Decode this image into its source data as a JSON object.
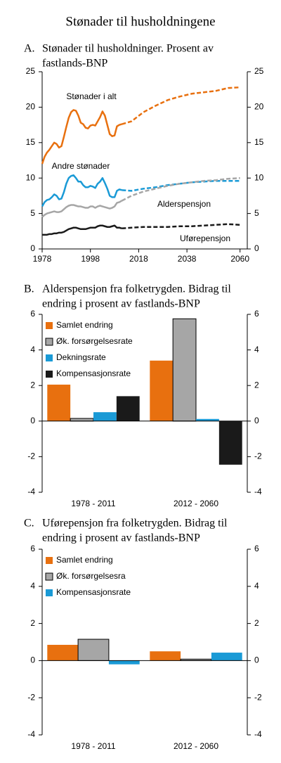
{
  "title": "Stønader til husholdningene",
  "chart_data": [
    {
      "type": "line",
      "label": "A.",
      "title": [
        "Stønader til husholdninger. Prosent av",
        "fastlands-BNP"
      ],
      "x": [
        1978,
        1979,
        1980,
        1981,
        1982,
        1983,
        1984,
        1985,
        1986,
        1987,
        1988,
        1989,
        1990,
        1991,
        1992,
        1993,
        1994,
        1995,
        1996,
        1997,
        1998,
        1999,
        2000,
        2001,
        2002,
        2003,
        2004,
        2005,
        2006,
        2007,
        2008,
        2009,
        2010,
        2011,
        2015,
        2020,
        2025,
        2030,
        2035,
        2040,
        2045,
        2050,
        2055,
        2060
      ],
      "xlim": [
        1978,
        2063
      ],
      "xticks": [
        1978,
        1998,
        2018,
        2038,
        2060
      ],
      "ylim": [
        0,
        25
      ],
      "yticks": [
        0,
        5,
        10,
        15,
        20,
        25
      ],
      "y2lim": [
        0,
        25
      ],
      "y2ticks": [
        0,
        5,
        10,
        15,
        20,
        25
      ],
      "series": [
        {
          "name": "Stønader i alt",
          "color": "#e8700f",
          "values": [
            12.0,
            13.0,
            13.6,
            14.0,
            14.5,
            15.0,
            14.8,
            14.3,
            14.5,
            15.8,
            17.2,
            18.5,
            19.3,
            19.6,
            19.5,
            18.8,
            17.8,
            17.6,
            17.1,
            17.0,
            17.4,
            17.5,
            17.4,
            18.0,
            18.6,
            19.4,
            18.8,
            17.5,
            16.2,
            15.9,
            16.0,
            17.3,
            17.5,
            17.6,
            null,
            null,
            null,
            null,
            null,
            null,
            null,
            null,
            null,
            null
          ]
        },
        {
          "name": "Andre stønader",
          "color": "#1a9ad6",
          "values": [
            6.0,
            6.6,
            6.9,
            7.0,
            7.3,
            7.7,
            7.5,
            7.0,
            7.1,
            8.0,
            9.2,
            10.0,
            10.3,
            10.4,
            10.0,
            9.5,
            9.5,
            9.0,
            8.7,
            8.7,
            8.9,
            8.8,
            8.6,
            9.2,
            9.5,
            10.0,
            9.3,
            8.5,
            7.5,
            7.3,
            7.3,
            8.2,
            8.4,
            8.3,
            null,
            null,
            null,
            null,
            null,
            null,
            null,
            null,
            null,
            null
          ]
        },
        {
          "name": "Alderspensjon",
          "color": "#a6a6a6",
          "values": [
            4.5,
            4.8,
            5.0,
            5.1,
            5.2,
            5.3,
            5.2,
            5.2,
            5.3,
            5.6,
            5.9,
            6.1,
            6.2,
            6.2,
            6.1,
            6.0,
            6.0,
            5.9,
            5.8,
            5.8,
            6.0,
            6.0,
            5.8,
            6.0,
            6.1,
            6.0,
            5.9,
            5.8,
            5.7,
            5.8,
            6.0,
            6.5,
            6.6,
            6.8,
            null,
            null,
            null,
            null,
            null,
            null,
            null,
            null,
            null,
            null
          ]
        },
        {
          "name": "Uførepensjon",
          "color": "#1a1a1a",
          "values": [
            2.0,
            2.0,
            2.0,
            2.1,
            2.1,
            2.2,
            2.2,
            2.3,
            2.3,
            2.4,
            2.6,
            2.8,
            2.9,
            3.0,
            3.0,
            2.9,
            2.8,
            2.8,
            2.8,
            2.9,
            3.0,
            3.0,
            3.0,
            3.2,
            3.3,
            3.3,
            3.2,
            3.1,
            3.1,
            3.2,
            3.3,
            3.0,
            3.0,
            2.9,
            null,
            null,
            null,
            null,
            null,
            null,
            null,
            null,
            null,
            null
          ]
        },
        {
          "color": "#e8700f",
          "dashed": true,
          "values": [
            null,
            null,
            null,
            null,
            null,
            null,
            null,
            null,
            null,
            null,
            null,
            null,
            null,
            null,
            null,
            null,
            null,
            null,
            null,
            null,
            null,
            null,
            null,
            null,
            null,
            null,
            null,
            null,
            null,
            null,
            null,
            null,
            null,
            17.6,
            18.0,
            19.3,
            20.2,
            21.0,
            21.5,
            21.9,
            22.1,
            22.3,
            22.7,
            22.8
          ]
        },
        {
          "color": "#1a9ad6",
          "dashed": true,
          "values": [
            null,
            null,
            null,
            null,
            null,
            null,
            null,
            null,
            null,
            null,
            null,
            null,
            null,
            null,
            null,
            null,
            null,
            null,
            null,
            null,
            null,
            null,
            null,
            null,
            null,
            null,
            null,
            null,
            null,
            null,
            null,
            null,
            null,
            8.3,
            8.2,
            8.5,
            8.7,
            9.0,
            9.2,
            9.4,
            9.5,
            9.6,
            9.6,
            9.6
          ]
        },
        {
          "color": "#a6a6a6",
          "dashed": true,
          "values": [
            null,
            null,
            null,
            null,
            null,
            null,
            null,
            null,
            null,
            null,
            null,
            null,
            null,
            null,
            null,
            null,
            null,
            null,
            null,
            null,
            null,
            null,
            null,
            null,
            null,
            null,
            null,
            null,
            null,
            null,
            null,
            null,
            null,
            6.8,
            7.5,
            8.1,
            8.5,
            8.9,
            9.2,
            9.4,
            9.6,
            9.7,
            9.9,
            10.0
          ]
        },
        {
          "color": "#1a1a1a",
          "dashed": true,
          "values": [
            null,
            null,
            null,
            null,
            null,
            null,
            null,
            null,
            null,
            null,
            null,
            null,
            null,
            null,
            null,
            null,
            null,
            null,
            null,
            null,
            null,
            null,
            null,
            null,
            null,
            null,
            null,
            null,
            null,
            null,
            null,
            null,
            null,
            2.9,
            3.0,
            3.1,
            3.1,
            3.1,
            3.2,
            3.2,
            3.3,
            3.4,
            3.5,
            3.4
          ]
        }
      ]
    },
    {
      "type": "bar",
      "label": "B.",
      "title": [
        "Alderspensjon fra folketrygden. Bidrag til",
        "endring i prosent av fastlands-BNP"
      ],
      "categories": [
        "1978 - 2011",
        "2012 - 2060"
      ],
      "ylim": [
        -4,
        6
      ],
      "yticks": [
        -4,
        -2,
        0,
        2,
        4,
        6
      ],
      "y2lim": [
        -4,
        6
      ],
      "y2ticks": [
        -4,
        -2,
        0,
        2,
        4,
        6
      ],
      "legend": "upper left",
      "series": [
        {
          "name": "Samlet endring",
          "color": "#e8700f",
          "values": [
            2.05,
            3.4
          ]
        },
        {
          "name": "Øk. forsørgelsesrate",
          "color": "#a6a6a6",
          "values": [
            0.15,
            5.75
          ]
        },
        {
          "name": "Dekningsrate",
          "color": "#1a9ad6",
          "values": [
            0.5,
            0.12
          ]
        },
        {
          "name": "Kompensasjonsrate",
          "color": "#1a1a1a",
          "values": [
            1.4,
            -2.45
          ]
        }
      ]
    },
    {
      "type": "bar",
      "label": "C.",
      "title": [
        "Uførepensjon fra folketrygden. Bidrag til",
        "endring i prosent av fastlands-BNP"
      ],
      "categories": [
        "1978 - 2011",
        "2012 - 2060"
      ],
      "ylim": [
        -4,
        6
      ],
      "yticks": [
        -4,
        -2,
        0,
        2,
        4,
        6
      ],
      "y2lim": [
        -4,
        6
      ],
      "y2ticks": [
        -4,
        -2,
        0,
        2,
        4,
        6
      ],
      "legend": "upper left",
      "series": [
        {
          "name": "Samlet endring",
          "color": "#e8700f",
          "values": [
            0.85,
            0.5
          ]
        },
        {
          "name": "Øk. forsørgelsesra",
          "color": "#a6a6a6",
          "values": [
            1.15,
            0.08
          ]
        },
        {
          "name": "Kompensasjonsrate",
          "color": "#1a9ad6",
          "values": [
            -0.2,
            0.43
          ]
        }
      ]
    }
  ]
}
